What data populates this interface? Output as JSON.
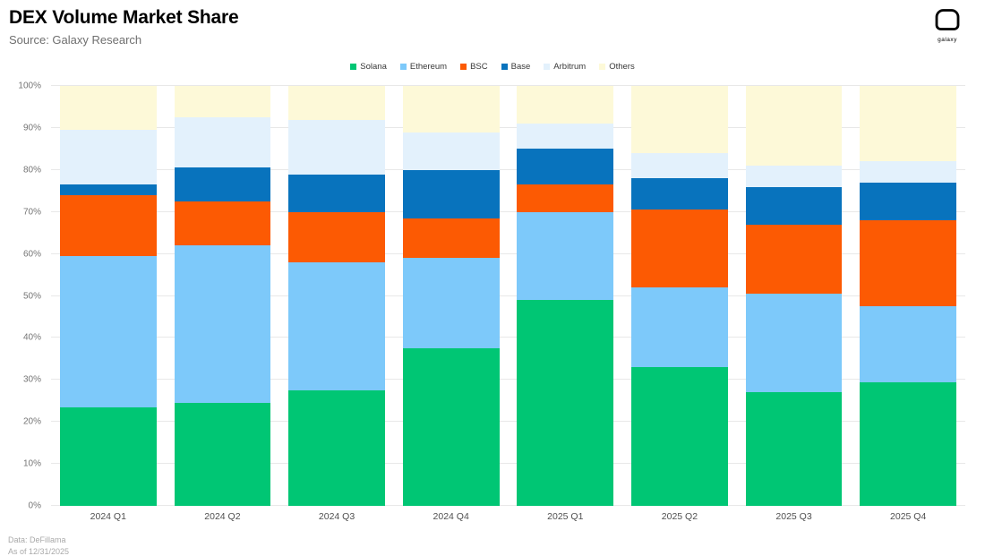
{
  "header": {
    "title": "DEX Volume Market Share",
    "subtitle": "Source: Galaxy Research",
    "logo_text": "galaxy"
  },
  "footer": {
    "line1": "Data: DeFillama",
    "line2": "As of 12/31/2025"
  },
  "chart_data": {
    "type": "bar",
    "stacked": true,
    "stack_unit": "percent",
    "title": "DEX Volume Market Share",
    "categories": [
      "2024 Q1",
      "2024 Q2",
      "2024 Q3",
      "2024 Q4",
      "2025 Q1",
      "2025 Q2",
      "2025 Q3",
      "2025 Q4"
    ],
    "series": [
      {
        "name": "Solana",
        "color": "#00c674",
        "values": [
          23.5,
          24.5,
          27.5,
          37.5,
          49.0,
          33.0,
          27.0,
          29.5
        ]
      },
      {
        "name": "Ethereum",
        "color": "#7dc9fa",
        "values": [
          36.0,
          37.5,
          30.5,
          21.5,
          21.0,
          19.0,
          23.5,
          18.0
        ]
      },
      {
        "name": "BSC",
        "color": "#fc5a03",
        "values": [
          14.5,
          10.5,
          12.0,
          9.5,
          6.5,
          18.5,
          16.5,
          20.5
        ]
      },
      {
        "name": "Base",
        "color": "#0873bd",
        "values": [
          2.5,
          8.0,
          9.0,
          11.5,
          8.5,
          7.5,
          9.0,
          9.0
        ]
      },
      {
        "name": "Arbitrum",
        "color": "#e3f1fc",
        "values": [
          13.0,
          12.0,
          13.0,
          9.0,
          6.0,
          6.0,
          5.0,
          5.0
        ]
      },
      {
        "name": "Others",
        "color": "#fdf9d8",
        "values": [
          10.5,
          7.5,
          8.0,
          11.0,
          9.0,
          16.0,
          19.0,
          18.0
        ]
      }
    ],
    "ylim": [
      0,
      100
    ],
    "yticks": [
      "0%",
      "10%",
      "20%",
      "30%",
      "40%",
      "50%",
      "60%",
      "70%",
      "80%",
      "90%",
      "100%"
    ],
    "grid": true,
    "legend_position": "top",
    "xlabel": "",
    "ylabel": ""
  }
}
